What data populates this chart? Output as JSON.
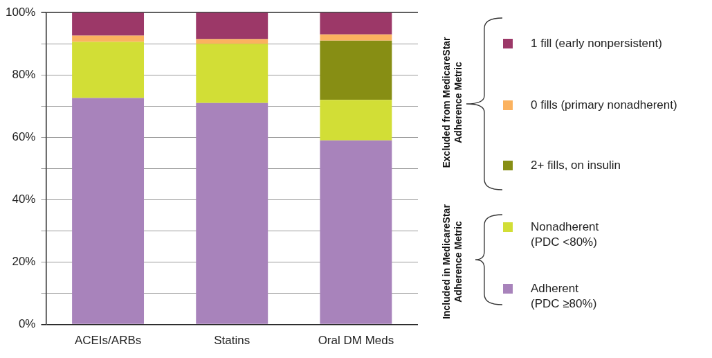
{
  "chart_data": {
    "type": "bar",
    "stacked": true,
    "categories": [
      "ACEIs/ARBs",
      "Statins",
      "Oral DM Meds"
    ],
    "series": [
      {
        "name": "Adherent (PDC ≥80%)",
        "color": "#a883bb",
        "values": [
          72.6,
          71,
          59
        ]
      },
      {
        "name": "Nonadherent (PDC <80%)",
        "color": "#d2de36",
        "values": [
          18,
          19,
          13
        ]
      },
      {
        "name": "2+ fills, on insulin",
        "color": "#878e14",
        "values": [
          0,
          0,
          19
        ]
      },
      {
        "name": "0 fills (primary nonadherent)",
        "color": "#fbb25f",
        "values": [
          2,
          1.5,
          2
        ]
      },
      {
        "name": "1 fill (early nonpersistent)",
        "color": "#9c3868",
        "values": [
          7.4,
          8.5,
          7
        ]
      }
    ],
    "ylim": [
      0,
      100
    ],
    "yticks": [
      {
        "value": 0,
        "label": "0%"
      },
      {
        "value": 10,
        "label": null
      },
      {
        "value": 20,
        "label": "20%"
      },
      {
        "value": 30,
        "label": null
      },
      {
        "value": 40,
        "label": "40%"
      },
      {
        "value": 50,
        "label": null
      },
      {
        "value": 60,
        "label": "60%"
      },
      {
        "value": 70,
        "label": null
      },
      {
        "value": 80,
        "label": "80%"
      },
      {
        "value": 90,
        "label": null
      },
      {
        "value": 100,
        "label": "100%"
      }
    ],
    "grid": "y",
    "legend": "right",
    "annotations": [
      "Excluded from MedicareStar Adherence Metric",
      "Included in MedicareStar Adherence Metric"
    ]
  }
}
